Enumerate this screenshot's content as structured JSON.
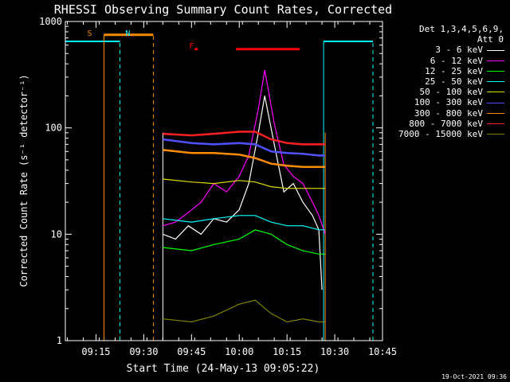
{
  "chart_data": {
    "type": "line",
    "title": "RHESSI Observing Summary Count Rates, Corrected",
    "xlabel": "Start Time (24-May-13 09:05:22)",
    "ylabel": "Corrected Count Rate (s⁻¹ detector⁻¹)",
    "y_scale": "log",
    "ylim": [
      1,
      1000
    ],
    "xlim": [
      "09:05:22",
      "10:45:00"
    ],
    "x_ticks": [
      "09:15",
      "09:30",
      "09:45",
      "10:00",
      "10:15",
      "10:30",
      "10:45"
    ],
    "y_ticks": [
      "1",
      "10",
      "100",
      "1000"
    ],
    "legend_header": [
      "Det 1,3,4,5,6,9,",
      "Att 0"
    ],
    "legend_position": "right",
    "series": [
      {
        "name": "3 - 6 keV",
        "color": "#ffffff",
        "x": [
          "09:36",
          "09:40",
          "09:44",
          "09:48",
          "09:52",
          "09:56",
          "10:00",
          "10:03",
          "10:06",
          "10:08",
          "10:11",
          "10:14",
          "10:17",
          "10:20",
          "10:23",
          "10:25",
          "10:26"
        ],
        "y": [
          10,
          9,
          12,
          10,
          14,
          13,
          17,
          30,
          90,
          200,
          70,
          25,
          30,
          20,
          15,
          11,
          3
        ]
      },
      {
        "name": "6 - 12 keV",
        "color": "#ff00ff",
        "x": [
          "09:36",
          "09:40",
          "09:44",
          "09:48",
          "09:52",
          "09:56",
          "10:00",
          "10:03",
          "10:06",
          "10:08",
          "10:11",
          "10:14",
          "10:17",
          "10:20",
          "10:23",
          "10:25",
          "10:27"
        ],
        "y": [
          12,
          13,
          16,
          20,
          30,
          25,
          35,
          55,
          150,
          350,
          110,
          45,
          35,
          30,
          20,
          15,
          10
        ]
      },
      {
        "name": "12 - 25 keV",
        "color": "#00ff00",
        "x": [
          "09:36",
          "09:45",
          "09:52",
          "10:00",
          "10:05",
          "10:10",
          "10:15",
          "10:20",
          "10:25",
          "10:27"
        ],
        "y": [
          7.5,
          7,
          8,
          9,
          11,
          10,
          8,
          7,
          6.5,
          6.5
        ]
      },
      {
        "name": "25 - 50 keV",
        "color": "#00ffff",
        "x": [
          "09:36",
          "09:45",
          "09:52",
          "10:00",
          "10:05",
          "10:10",
          "10:15",
          "10:20",
          "10:25",
          "10:27"
        ],
        "y": [
          14,
          13,
          14,
          15,
          15,
          13,
          12,
          12,
          11,
          11
        ]
      },
      {
        "name": "50 - 100 keV",
        "color": "#dddd00",
        "x": [
          "09:36",
          "09:45",
          "09:52",
          "10:00",
          "10:05",
          "10:10",
          "10:15",
          "10:20",
          "10:25",
          "10:27"
        ],
        "y": [
          33,
          31,
          30,
          32,
          31,
          28,
          27,
          27,
          27,
          27
        ]
      },
      {
        "name": "100 - 300 keV",
        "color": "#5050ff",
        "x": [
          "09:36",
          "09:45",
          "09:52",
          "10:00",
          "10:05",
          "10:10",
          "10:15",
          "10:20",
          "10:25",
          "10:27"
        ],
        "y": [
          78,
          72,
          70,
          72,
          70,
          60,
          58,
          57,
          55,
          55
        ]
      },
      {
        "name": "300 - 800 keV",
        "color": "#ff8c00",
        "x": [
          "09:36",
          "09:45",
          "09:52",
          "10:00",
          "10:05",
          "10:10",
          "10:15",
          "10:20",
          "10:25",
          "10:27"
        ],
        "y": [
          62,
          58,
          58,
          56,
          52,
          46,
          44,
          43,
          43,
          43
        ]
      },
      {
        "name": "800 - 7000 keV",
        "color": "#ff2020",
        "x": [
          "09:36",
          "09:45",
          "09:52",
          "10:00",
          "10:05",
          "10:10",
          "10:15",
          "10:20",
          "10:25",
          "10:27"
        ],
        "y": [
          88,
          85,
          88,
          92,
          92,
          78,
          72,
          70,
          70,
          70
        ]
      },
      {
        "name": "7000 - 15000 keV",
        "color": "#808000",
        "x": [
          "09:36",
          "09:45",
          "09:52",
          "10:00",
          "10:05",
          "10:10",
          "10:15",
          "10:20",
          "10:25",
          "10:27"
        ],
        "y": [
          1.6,
          1.5,
          1.7,
          2.2,
          2.4,
          1.8,
          1.5,
          1.6,
          1.5,
          1.5
        ]
      }
    ],
    "annotations": [
      {
        "text": "S",
        "color": "#ff8c00",
        "x": "09:13"
      },
      {
        "text": "N",
        "color": "#00ffff",
        "x": "09:25"
      },
      {
        "text": "F",
        "color": "#ff0000",
        "x": "09:45"
      }
    ],
    "intervals": [
      {
        "kind": "night",
        "color": "#00ffff",
        "from": "09:05:22",
        "to": "09:22:30",
        "level": 650
      },
      {
        "kind": "night",
        "color": "#00ffff",
        "from": "10:26:30",
        "to": "10:42:00",
        "level": 650
      },
      {
        "kind": "saa",
        "color": "#ff8c00",
        "from": "09:17:30",
        "to": "09:33:00",
        "level": 750
      },
      {
        "kind": "flare",
        "color": "#ff0000",
        "from": "09:46:00",
        "to": "09:47:00",
        "level": 550
      },
      {
        "kind": "flare",
        "color": "#ff0000",
        "from": "09:59:00",
        "to": "10:19:00",
        "level": 550
      }
    ],
    "grid": false
  },
  "footer": {
    "timestamp": "19-Oct-2021 09:36"
  }
}
